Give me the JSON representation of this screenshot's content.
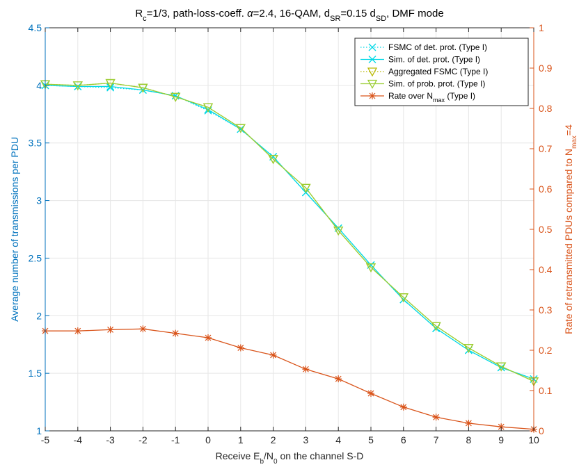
{
  "chart_data": {
    "type": "line",
    "title": {
      "segments": [
        {
          "t": "R"
        },
        {
          "t": "c",
          "sub": true
        },
        {
          "t": "=1/3,  path-loss-coeff. "
        },
        {
          "t": "α",
          "i": true
        },
        {
          "t": "=2.4,  16-QAM,  d"
        },
        {
          "t": "SR",
          "sub": true
        },
        {
          "t": "=0.15 d"
        },
        {
          "t": "SD",
          "sub": true
        },
        {
          "t": ",   DMF mode"
        }
      ]
    },
    "xlabel": {
      "segments": [
        {
          "t": "Receive E"
        },
        {
          "t": "b",
          "sub": true
        },
        {
          "t": "/N"
        },
        {
          "t": "0",
          "sub": true
        },
        {
          "t": " on the channel S-D"
        }
      ]
    },
    "ylabel_left": "Average number of transmissions per PDU",
    "ylabel_right": {
      "segments": [
        {
          "t": "Rate of retransmitted PDUs compared to N"
        },
        {
          "t": "max",
          "sub": true
        },
        {
          "t": "=4"
        }
      ]
    },
    "x": [
      -5,
      -4,
      -3,
      -2,
      -1,
      0,
      1,
      2,
      3,
      4,
      5,
      6,
      7,
      8,
      9,
      10
    ],
    "xlim": [
      -5,
      10
    ],
    "xticks": [
      "-5",
      "-4",
      "-3",
      "-2",
      "-1",
      "0",
      "1",
      "2",
      "3",
      "4",
      "5",
      "6",
      "7",
      "8",
      "9",
      "10"
    ],
    "ylim_left": [
      1,
      4.5
    ],
    "yticks_left": [
      "1",
      "1.5",
      "2",
      "2.5",
      "3",
      "3.5",
      "4",
      "4.5"
    ],
    "ylim_right": [
      0,
      1
    ],
    "yticks_right": [
      "0",
      "0.1",
      "0.2",
      "0.3",
      "0.4",
      "0.5",
      "0.6",
      "0.7",
      "0.8",
      "0.9",
      "1"
    ],
    "grid": true,
    "legend_position": "top-right",
    "left_axis_color": "#0072bd",
    "right_axis_color": "#d95319",
    "series": [
      {
        "name": {
          "segments": [
            {
              "t": "FSMC of det. prot. (Type I)"
            }
          ]
        },
        "axis": "left",
        "color": "#00d8e6",
        "style": "dotted",
        "marker": "x",
        "values": [
          4.0,
          3.99,
          3.98,
          3.96,
          3.91,
          3.78,
          3.62,
          3.38,
          3.07,
          2.76,
          2.44,
          2.14,
          1.89,
          1.7,
          1.55,
          1.45
        ]
      },
      {
        "name": {
          "segments": [
            {
              "t": "Sim. of det. prot. (Type I)"
            }
          ]
        },
        "axis": "left",
        "color": "#00d8e6",
        "style": "solid",
        "marker": "x",
        "values": [
          4.0,
          3.99,
          3.99,
          3.96,
          3.91,
          3.79,
          3.62,
          3.38,
          3.07,
          2.76,
          2.44,
          2.14,
          1.89,
          1.7,
          1.55,
          1.45
        ]
      },
      {
        "name": {
          "segments": [
            {
              "t": "Aggregated FSMC (Type I)"
            }
          ]
        },
        "axis": "left",
        "color": "#b8b800",
        "style": "dotted",
        "marker": "triangle-down",
        "values": [
          4.01,
          4.0,
          4.02,
          3.98,
          3.9,
          3.81,
          3.63,
          3.36,
          3.11,
          2.74,
          2.42,
          2.16,
          1.91,
          1.72,
          1.56,
          1.43
        ]
      },
      {
        "name": {
          "segments": [
            {
              "t": "Sim. of prob. prot. (Type I)"
            }
          ]
        },
        "axis": "left",
        "color": "#9acd32",
        "style": "solid",
        "marker": "triangle-down",
        "values": [
          4.01,
          4.0,
          4.02,
          3.98,
          3.9,
          3.81,
          3.63,
          3.36,
          3.11,
          2.74,
          2.42,
          2.16,
          1.91,
          1.72,
          1.56,
          1.43
        ]
      },
      {
        "name": {
          "segments": [
            {
              "t": "Rate over N"
            },
            {
              "t": "max",
              "sub": true
            },
            {
              "t": " (Type I)"
            }
          ]
        },
        "axis": "right",
        "color": "#d95319",
        "style": "solid",
        "marker": "asterisk",
        "values": [
          0.248,
          0.248,
          0.251,
          0.253,
          0.242,
          0.231,
          0.206,
          0.188,
          0.153,
          0.129,
          0.093,
          0.059,
          0.034,
          0.019,
          0.01,
          0.004
        ]
      }
    ]
  }
}
